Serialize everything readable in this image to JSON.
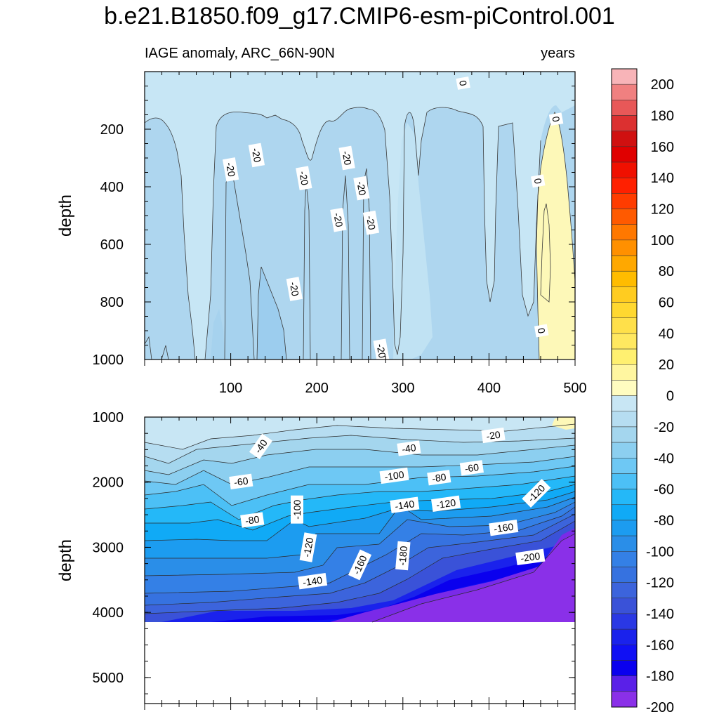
{
  "title": "b.e21.B1850.f09_g17.CMIP6-esm-piControl.001",
  "chart_data": [
    {
      "type": "heatmap",
      "variable_label": "IAGE anomaly, ARC_66N-90N",
      "units_label": "years",
      "xlabel": "",
      "ylabel": "depth",
      "xlim": [
        0,
        500
      ],
      "ylim": [
        1000,
        0
      ],
      "x_ticks": [
        "100",
        "200",
        "300",
        "400",
        "500"
      ],
      "y_ticks": [
        "200",
        "400",
        "600",
        "800",
        "1000"
      ],
      "y_tick_values": [
        200,
        400,
        600,
        800,
        1000
      ],
      "contour_labels": [
        {
          "text": "0",
          "x": 370,
          "y": 40
        },
        {
          "text": "0",
          "x": 478,
          "y": 165
        },
        {
          "text": "-20",
          "x": 130,
          "y": 290
        },
        {
          "text": "-20",
          "x": 235,
          "y": 300
        },
        {
          "text": "-20",
          "x": 100,
          "y": 340
        },
        {
          "text": "-20",
          "x": 185,
          "y": 370
        },
        {
          "text": "0",
          "x": 457,
          "y": 380
        },
        {
          "text": "-20",
          "x": 252,
          "y": 405
        },
        {
          "text": "-20",
          "x": 225,
          "y": 515
        },
        {
          "text": "-20",
          "x": 263,
          "y": 525
        },
        {
          "text": "-20",
          "x": 174,
          "y": 755
        },
        {
          "text": "0",
          "x": 461,
          "y": 900
        },
        {
          "text": "-20",
          "x": 275,
          "y": 970
        }
      ]
    },
    {
      "type": "heatmap",
      "xlabel": "",
      "ylabel": "depth",
      "xlim": [
        0,
        500
      ],
      "ylim": [
        5400,
        1000
      ],
      "data_depth_max": 4100,
      "y_ticks": [
        "1000",
        "2000",
        "3000",
        "4000",
        "5000"
      ],
      "y_tick_values": [
        1000,
        2000,
        3000,
        4000,
        5000
      ],
      "contour_labels": [
        {
          "text": "-40",
          "x": 135,
          "y": 1450
        },
        {
          "text": "-40",
          "x": 307,
          "y": 1480
        },
        {
          "text": "-20",
          "x": 405,
          "y": 1280
        },
        {
          "text": "-60",
          "x": 112,
          "y": 1990
        },
        {
          "text": "-60",
          "x": 380,
          "y": 1780
        },
        {
          "text": "-100",
          "x": 290,
          "y": 1900
        },
        {
          "text": "-80",
          "x": 342,
          "y": 1930
        },
        {
          "text": "-100",
          "x": 177,
          "y": 2420
        },
        {
          "text": "-140",
          "x": 302,
          "y": 2350
        },
        {
          "text": "-120",
          "x": 350,
          "y": 2330
        },
        {
          "text": "-120",
          "x": 455,
          "y": 2170
        },
        {
          "text": "-80",
          "x": 125,
          "y": 2580
        },
        {
          "text": "-160",
          "x": 417,
          "y": 2700
        },
        {
          "text": "-120",
          "x": 190,
          "y": 3000
        },
        {
          "text": "-180",
          "x": 300,
          "y": 3130
        },
        {
          "text": "-200",
          "x": 448,
          "y": 3150
        },
        {
          "text": "-160",
          "x": 250,
          "y": 3270
        },
        {
          "text": "-140",
          "x": 195,
          "y": 3520
        }
      ]
    },
    {
      "type": "colorbar",
      "levels": [
        "200",
        "180",
        "160",
        "140",
        "120",
        "100",
        "80",
        "60",
        "40",
        "20",
        "0",
        "-20",
        "-40",
        "-60",
        "-80",
        "-100",
        "-120",
        "-140",
        "-160",
        "-180",
        "-200"
      ],
      "level_values": [
        200,
        180,
        160,
        140,
        120,
        100,
        80,
        60,
        40,
        20,
        0,
        -20,
        -40,
        -60,
        -80,
        -100,
        -120,
        -140,
        -160,
        -180,
        -200
      ],
      "colors": [
        "#f8b4b8",
        "#f08080",
        "#e85858",
        "#dc3030",
        "#d01010",
        "#e00000",
        "#f01000",
        "#ff2000",
        "#ff3c00",
        "#ff5a00",
        "#ff7800",
        "#ff9000",
        "#ffa800",
        "#ffbc00",
        "#ffcc20",
        "#ffd830",
        "#ffe04a",
        "#ffe860",
        "#fff070",
        "#fff6a0",
        "#fffcc0",
        "#c8e6f4",
        "#b6ddf1",
        "#a4d6ee",
        "#8ccff0",
        "#6ec8f4",
        "#4cc0f6",
        "#24b8f8",
        "#10aaf6",
        "#1c9cf0",
        "#2a8ee8",
        "#3480e6",
        "#3672e0",
        "#3c64dc",
        "#3a52d8",
        "#2a38e4",
        "#1a22ec",
        "#1010f4",
        "#0a00ee",
        "#5a20e8",
        "#8a30e8"
      ]
    }
  ]
}
